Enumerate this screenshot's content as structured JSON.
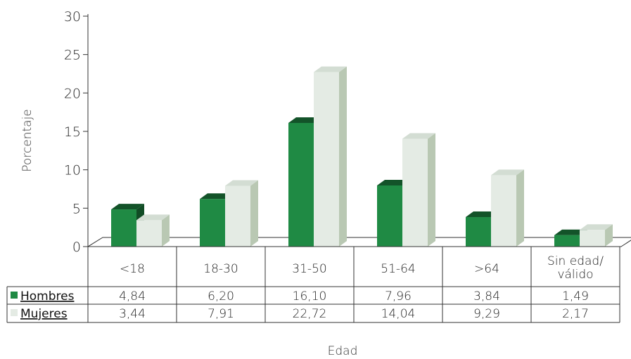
{
  "chart_data": {
    "type": "bar",
    "categories": [
      "<18",
      "18-30",
      "31-50",
      "51-64",
      ">64",
      "Sin edad/ válido"
    ],
    "category_lines": [
      [
        "<18"
      ],
      [
        "18-30"
      ],
      [
        "31-50"
      ],
      [
        "51-64"
      ],
      [
        ">64"
      ],
      [
        "Sin edad/",
        "válido"
      ]
    ],
    "series": [
      {
        "name": "Hombres",
        "values": [
          4.84,
          6.2,
          16.1,
          7.96,
          3.84,
          1.49
        ],
        "labels": [
          "4,84",
          "6,20",
          "16,10",
          "7,96",
          "3,84",
          "1,49"
        ],
        "color": "#1f8a44"
      },
      {
        "name": "Mujeres",
        "values": [
          3.44,
          7.91,
          22.72,
          14.04,
          9.29,
          2.17
        ],
        "labels": [
          "3,44",
          "7,91",
          "22,72",
          "14,04",
          "9,29",
          "2,17"
        ],
        "color": "#e4ebe4"
      }
    ],
    "ylabel": "Porcentaje",
    "xlabel": "Edad",
    "ylim": [
      0,
      30
    ],
    "yticks": [
      0,
      5,
      10,
      15,
      20,
      25,
      30
    ],
    "style": "3d-bar-with-data-table",
    "legend": "data-table-left"
  }
}
